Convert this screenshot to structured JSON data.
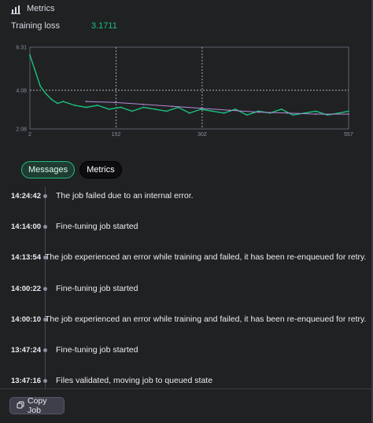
{
  "header": {
    "title": "Metrics",
    "icon": "bar-chart-icon"
  },
  "training_loss": {
    "label": "Training loss",
    "value": "3.1711"
  },
  "chart_data": {
    "type": "line",
    "title": "",
    "xlabel": "",
    "ylabel": "",
    "x_ticks": [
      "2",
      "152",
      "302",
      "557"
    ],
    "y_ticks": [
      "6.31",
      "4.08",
      "2.08"
    ],
    "xlim": [
      2,
      557
    ],
    "ylim": [
      2.08,
      6.31
    ],
    "grid": true,
    "series": [
      {
        "name": "",
        "color": "#19c37d",
        "x": [
          2,
          10,
          20,
          30,
          40,
          50,
          60,
          80,
          100,
          120,
          140,
          160,
          180,
          200,
          220,
          240,
          260,
          280,
          300,
          320,
          340,
          360,
          380,
          400,
          420,
          440,
          460,
          480,
          500,
          520,
          540,
          557
        ],
        "y": [
          5.9,
          5.2,
          4.3,
          3.9,
          3.6,
          3.4,
          3.5,
          3.3,
          3.2,
          3.3,
          3.1,
          3.2,
          3.0,
          3.2,
          3.1,
          3.0,
          3.2,
          2.9,
          3.1,
          3.0,
          2.9,
          3.1,
          2.8,
          3.0,
          2.9,
          3.1,
          2.8,
          2.9,
          3.0,
          2.8,
          2.9,
          3.0
        ]
      },
      {
        "name": "",
        "color": "#b58ad8",
        "x": [
          100,
          150,
          200,
          250,
          300,
          350,
          400,
          450,
          500,
          557
        ],
        "y": [
          3.5,
          3.45,
          3.35,
          3.25,
          3.15,
          3.05,
          2.95,
          2.9,
          2.85,
          2.85
        ]
      }
    ]
  },
  "tabs": [
    {
      "label": "Messages",
      "active": true
    },
    {
      "label": "Metrics",
      "active": false
    }
  ],
  "messages": [
    {
      "time": "14:24:42",
      "text": "The job failed due to an internal error."
    },
    {
      "time": "14:14:00",
      "text": "Fine-tuning job started"
    },
    {
      "time": "14:13:54",
      "text": "The job experienced an error while training and failed, it has been re-enqueued for retry."
    },
    {
      "time": "14:00:22",
      "text": "Fine-tuning job started"
    },
    {
      "time": "14:00:10",
      "text": "The job experienced an error while training and failed, it has been re-enqueued for retry."
    },
    {
      "time": "13:47:24",
      "text": "Fine-tuning job started"
    },
    {
      "time": "13:47:16",
      "text": "Files validated, moving job to queued state"
    }
  ],
  "footer": {
    "copy_label": "Copy Job",
    "icon": "copy-icon"
  }
}
